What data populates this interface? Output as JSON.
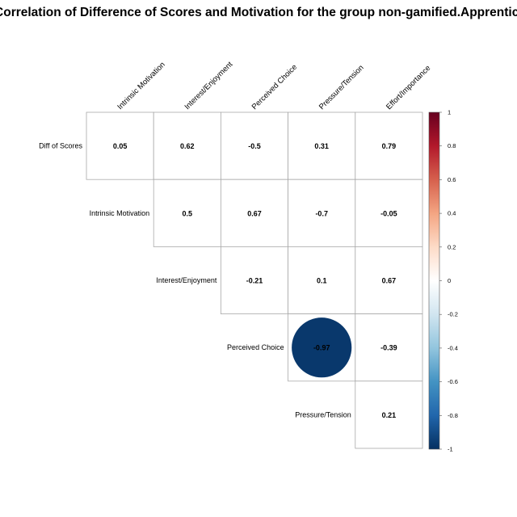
{
  "chart_data": {
    "type": "heatmap",
    "subtype": "correlation-matrix-upper-triangle-circles",
    "title": "Correlation of Difference of Scores and Motivation for the group non-gamified.Apprentice",
    "columns": [
      "Intrinsic Motivation",
      "Interest/Enjoyment",
      "Perceived Choice",
      "Pressure/Tension",
      "Effort/Importance"
    ],
    "rows": [
      "Diff of Scores",
      "Intrinsic Motivation",
      "Interest/Enjoyment",
      "Perceived Choice",
      "Pressure/Tension"
    ],
    "values": [
      [
        0.05,
        0.62,
        -0.5,
        0.31,
        0.79
      ],
      [
        null,
        0.5,
        0.67,
        -0.7,
        -0.05
      ],
      [
        null,
        null,
        -0.21,
        0.1,
        0.67
      ],
      [
        null,
        null,
        null,
        -0.97,
        -0.39
      ],
      [
        null,
        null,
        null,
        null,
        0.21
      ]
    ],
    "value_labels": [
      [
        "0.05",
        "0.62",
        "-0.5",
        "0.31",
        "0.79"
      ],
      [
        null,
        "0.5",
        "0.67",
        "-0.7",
        "-0.05"
      ],
      [
        null,
        null,
        "-0.21",
        "0.1",
        "0.67"
      ],
      [
        null,
        null,
        null,
        "-0.97",
        "-0.39"
      ],
      [
        null,
        null,
        null,
        null,
        "0.21"
      ]
    ],
    "significant_circles": [
      [
        3,
        3
      ]
    ],
    "colorbar": {
      "range": [
        -1,
        1
      ],
      "ticks": [
        "1",
        "0.8",
        "0.6",
        "0.4",
        "0.2",
        "0",
        "-0.2",
        "-0.4",
        "-0.6",
        "-0.8",
        "-1"
      ],
      "colors": [
        "#67001F",
        "#B2182B",
        "#D6604D",
        "#F4A582",
        "#FDDBC7",
        "#FFFFFF",
        "#D1E5F0",
        "#92C5DE",
        "#4393C3",
        "#2166AC",
        "#053061"
      ]
    },
    "grid": true,
    "legend_position": "right"
  }
}
